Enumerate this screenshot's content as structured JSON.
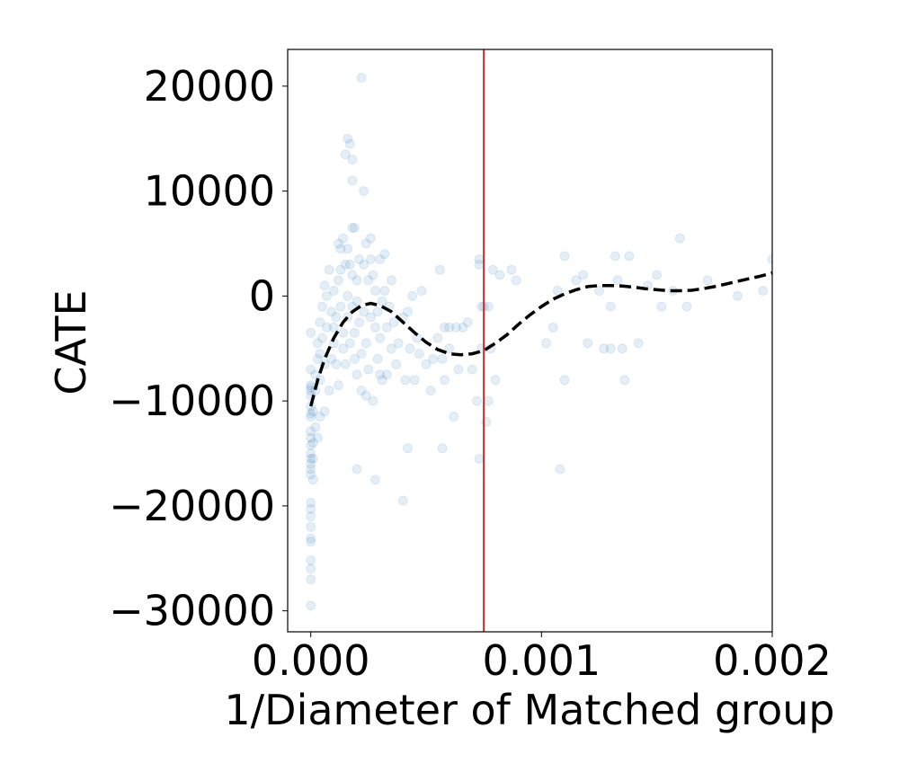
{
  "chart_data": {
    "type": "scatter",
    "title": "",
    "xlabel": "1/Diameter of Matched group",
    "ylabel": "CATE",
    "xlim": [
      -0.0001,
      0.002
    ],
    "ylim": [
      -32000,
      23500
    ],
    "x_ticks": [
      {
        "value": 0.0,
        "label": "0.000"
      },
      {
        "value": 0.001,
        "label": "0.001"
      },
      {
        "value": 0.002,
        "label": "0.002"
      }
    ],
    "y_ticks": [
      {
        "value": 20000,
        "label": "20000"
      },
      {
        "value": 10000,
        "label": "10000"
      },
      {
        "value": 0,
        "label": "0"
      },
      {
        "value": -10000,
        "label": "−10000"
      },
      {
        "value": -20000,
        "label": "−20000"
      },
      {
        "value": -30000,
        "label": "−30000"
      }
    ],
    "grid": false,
    "colors": {
      "points": "#1f77b4",
      "trend": "#000000",
      "vline": "#d62728",
      "axes": "#000000"
    },
    "vline_x": 0.00075,
    "series": [
      {
        "kind": "scatter",
        "alpha": 0.12,
        "points": [
          [
            0.0,
            -29500
          ],
          [
            0.0,
            -27000
          ],
          [
            0.0,
            -26000
          ],
          [
            0.0,
            -25200
          ],
          [
            0.0,
            -23400
          ],
          [
            0.0,
            -23100
          ],
          [
            0.0,
            -22000
          ],
          [
            0.0,
            -21000
          ],
          [
            0.0,
            -20300
          ],
          [
            0.0,
            -19700
          ],
          [
            0.0,
            -17000
          ],
          [
            0.0,
            -16500
          ],
          [
            0.0,
            -16000
          ],
          [
            0.0,
            -15500
          ],
          [
            0.0,
            -15000
          ],
          [
            0.0,
            -14200
          ],
          [
            0.0,
            -13500
          ],
          [
            0.0,
            -12900
          ],
          [
            0.0,
            -11500
          ],
          [
            0.0,
            -11200
          ],
          [
            0.0,
            -10500
          ],
          [
            0.0,
            -9500
          ],
          [
            0.0,
            -9000
          ],
          [
            0.0,
            -8700
          ],
          [
            0.0,
            -8500
          ],
          [
            0.0,
            -7000
          ],
          [
            0.0,
            -3500
          ],
          [
            1e-05,
            -17500
          ],
          [
            1e-05,
            -15500
          ],
          [
            1e-05,
            -14000
          ],
          [
            1e-05,
            -11000
          ],
          [
            2e-05,
            -12500
          ],
          [
            2e-05,
            -9000
          ],
          [
            2e-05,
            -7500
          ],
          [
            3e-05,
            -13500
          ],
          [
            3e-05,
            -6000
          ],
          [
            3e-05,
            -4500
          ],
          [
            4e-05,
            -11500
          ],
          [
            4e-05,
            -8000
          ],
          [
            4e-05,
            -5500
          ],
          [
            4e-05,
            -2500
          ],
          [
            5e-05,
            -4000
          ],
          [
            5e-05,
            -1000
          ],
          [
            6e-05,
            -6500
          ],
          [
            6e-05,
            1000
          ],
          [
            6e-05,
            -11000
          ],
          [
            7e-05,
            -3000
          ],
          [
            7e-05,
            0
          ],
          [
            8e-05,
            -9000
          ],
          [
            8e-05,
            2500
          ],
          [
            9e-05,
            -6000
          ],
          [
            9e-05,
            -1500
          ],
          [
            0.0001,
            -4500
          ],
          [
            0.0001,
            -3000
          ],
          [
            0.0001,
            500
          ],
          [
            0.00011,
            -2000
          ],
          [
            0.00011,
            -6500
          ],
          [
            0.00012,
            -8500
          ],
          [
            0.00012,
            5000
          ],
          [
            0.00012,
            1500
          ],
          [
            0.00013,
            4500
          ],
          [
            0.00013,
            -1000
          ],
          [
            0.00013,
            2500
          ],
          [
            0.00014,
            5500
          ],
          [
            0.00014,
            -5000
          ],
          [
            0.00014,
            -3500
          ],
          [
            0.00015,
            3000
          ],
          [
            0.00015,
            -6500
          ],
          [
            0.00015,
            13500
          ],
          [
            0.00016,
            0
          ],
          [
            0.00016,
            4500
          ],
          [
            0.00016,
            -2000
          ],
          [
            0.00016,
            15000
          ],
          [
            0.00017,
            3000
          ],
          [
            0.00017,
            -4500
          ],
          [
            0.00017,
            14500
          ],
          [
            0.00018,
            -1000
          ],
          [
            0.00018,
            6500
          ],
          [
            0.00018,
            11000
          ],
          [
            0.00018,
            2000
          ],
          [
            0.00018,
            13000
          ],
          [
            0.00019,
            -6000
          ],
          [
            0.00019,
            6500
          ],
          [
            0.00019,
            -3500
          ],
          [
            0.0002,
            1500
          ],
          [
            0.0002,
            -16500
          ],
          [
            0.0002,
            -7500
          ],
          [
            0.0002,
            -500
          ],
          [
            0.00021,
            3500
          ],
          [
            0.00021,
            -2500
          ],
          [
            0.00022,
            -9000
          ],
          [
            0.00022,
            20800
          ],
          [
            0.00022,
            -5500
          ],
          [
            0.00023,
            10000
          ],
          [
            0.00023,
            -1500
          ],
          [
            0.00023,
            3000
          ],
          [
            0.00024,
            5000
          ],
          [
            0.00024,
            -9500
          ],
          [
            0.00024,
            -4500
          ],
          [
            0.00025,
            1500
          ],
          [
            0.00025,
            -7000
          ],
          [
            0.00026,
            5500
          ],
          [
            0.00026,
            -2000
          ],
          [
            0.00026,
            3500
          ],
          [
            0.00027,
            -10000
          ],
          [
            0.00027,
            2000
          ],
          [
            0.00028,
            -3000
          ],
          [
            0.00028,
            500
          ],
          [
            0.00028,
            -17500
          ],
          [
            0.00029,
            -6000
          ],
          [
            0.00029,
            -1500
          ],
          [
            0.0003,
            -7500
          ],
          [
            0.0003,
            3500
          ],
          [
            0.0003,
            -4000
          ],
          [
            0.00031,
            -500
          ],
          [
            0.00031,
            -8000
          ],
          [
            0.00032,
            4000
          ],
          [
            0.00032,
            500
          ],
          [
            0.00033,
            -7500
          ],
          [
            0.00033,
            -3000
          ],
          [
            0.00034,
            -1000
          ],
          [
            0.00035,
            -5000
          ],
          [
            0.00035,
            1500
          ],
          [
            0.00036,
            -2500
          ],
          [
            0.00037,
            -6500
          ],
          [
            0.00038,
            -4500
          ],
          [
            0.0004,
            -19500
          ],
          [
            0.0004,
            -2000
          ],
          [
            0.00041,
            -8000
          ],
          [
            0.00042,
            -14500
          ],
          [
            0.00042,
            -1500
          ],
          [
            0.00043,
            -5000
          ],
          [
            0.00044,
            0
          ],
          [
            0.00045,
            -8000
          ],
          [
            0.00046,
            -4000
          ],
          [
            0.00047,
            -5500
          ],
          [
            0.00048,
            500
          ],
          [
            0.0005,
            -6500
          ],
          [
            0.00052,
            -9000
          ],
          [
            0.00053,
            -6000
          ],
          [
            0.00055,
            -4000
          ],
          [
            0.00056,
            2500
          ],
          [
            0.00057,
            -14500
          ],
          [
            0.00057,
            -6000
          ],
          [
            0.00058,
            -3000
          ],
          [
            0.00058,
            -8000
          ],
          [
            0.0006,
            -3000
          ],
          [
            0.0006,
            -5000
          ],
          [
            0.00062,
            -11500
          ],
          [
            0.00063,
            -3000
          ],
          [
            0.00064,
            -7000
          ],
          [
            0.00066,
            -3000
          ],
          [
            0.00068,
            -2500
          ],
          [
            0.0007,
            -7000
          ],
          [
            0.00072,
            -10000
          ],
          [
            0.00073,
            3000
          ],
          [
            0.00073,
            3500
          ],
          [
            0.00073,
            -15500
          ],
          [
            0.00074,
            -1000
          ],
          [
            0.00074,
            -5000
          ],
          [
            0.00075,
            -1000
          ],
          [
            0.00076,
            -12000
          ],
          [
            0.00077,
            -10000
          ],
          [
            0.00077,
            -1000
          ],
          [
            0.00078,
            -5000
          ],
          [
            0.00079,
            2500
          ],
          [
            0.0008,
            -8000
          ],
          [
            0.00082,
            2000
          ],
          [
            0.00087,
            2500
          ],
          [
            0.00089,
            1500
          ],
          [
            0.00102,
            -4500
          ],
          [
            0.00105,
            -3000
          ],
          [
            0.00107,
            500
          ],
          [
            0.00108,
            -16500
          ],
          [
            0.0011,
            3800
          ],
          [
            0.0011,
            -8000
          ],
          [
            0.00115,
            1500
          ],
          [
            0.00118,
            2000
          ],
          [
            0.0012,
            -4500
          ],
          [
            0.00125,
            500
          ],
          [
            0.00127,
            -5000
          ],
          [
            0.0013,
            -1000
          ],
          [
            0.0013,
            -5000
          ],
          [
            0.00132,
            3800
          ],
          [
            0.00133,
            1500
          ],
          [
            0.00135,
            -5000
          ],
          [
            0.00136,
            -8000
          ],
          [
            0.00138,
            3800
          ],
          [
            0.00142,
            -4500
          ],
          [
            0.00146,
            1000
          ],
          [
            0.0015,
            2000
          ],
          [
            0.00152,
            -1000
          ],
          [
            0.00157,
            500
          ],
          [
            0.0016,
            5500
          ],
          [
            0.00163,
            -1000
          ],
          [
            0.00172,
            1500
          ],
          [
            0.00185,
            0
          ],
          [
            0.00196,
            500
          ],
          [
            0.002,
            3500
          ]
        ]
      },
      {
        "kind": "trend",
        "style": "dashed",
        "points": [
          [
            0.0,
            -10500
          ],
          [
            3e-05,
            -8000
          ],
          [
            6e-05,
            -6000
          ],
          [
            0.0001,
            -4000
          ],
          [
            0.00014,
            -2500
          ],
          [
            0.00018,
            -1500
          ],
          [
            0.00022,
            -900
          ],
          [
            0.00026,
            -700
          ],
          [
            0.0003,
            -900
          ],
          [
            0.00035,
            -1500
          ],
          [
            0.0004,
            -2500
          ],
          [
            0.00045,
            -3500
          ],
          [
            0.0005,
            -4400
          ],
          [
            0.00055,
            -5100
          ],
          [
            0.0006,
            -5500
          ],
          [
            0.00065,
            -5600
          ],
          [
            0.0007,
            -5500
          ],
          [
            0.00075,
            -5200
          ],
          [
            0.0008,
            -4500
          ],
          [
            0.00085,
            -3700
          ],
          [
            0.0009,
            -2700
          ],
          [
            0.00095,
            -1800
          ],
          [
            0.001,
            -1000
          ],
          [
            0.00105,
            -300
          ],
          [
            0.0011,
            200
          ],
          [
            0.00115,
            600
          ],
          [
            0.0012,
            900
          ],
          [
            0.00125,
            1000
          ],
          [
            0.0013,
            1000
          ],
          [
            0.00135,
            950
          ],
          [
            0.0014,
            850
          ],
          [
            0.00145,
            700
          ],
          [
            0.0015,
            600
          ],
          [
            0.00155,
            500
          ],
          [
            0.0016,
            500
          ],
          [
            0.00165,
            550
          ],
          [
            0.0017,
            700
          ],
          [
            0.00175,
            900
          ],
          [
            0.0018,
            1150
          ],
          [
            0.00185,
            1400
          ],
          [
            0.0019,
            1650
          ],
          [
            0.00195,
            1900
          ],
          [
            0.002,
            2200
          ]
        ]
      }
    ]
  }
}
